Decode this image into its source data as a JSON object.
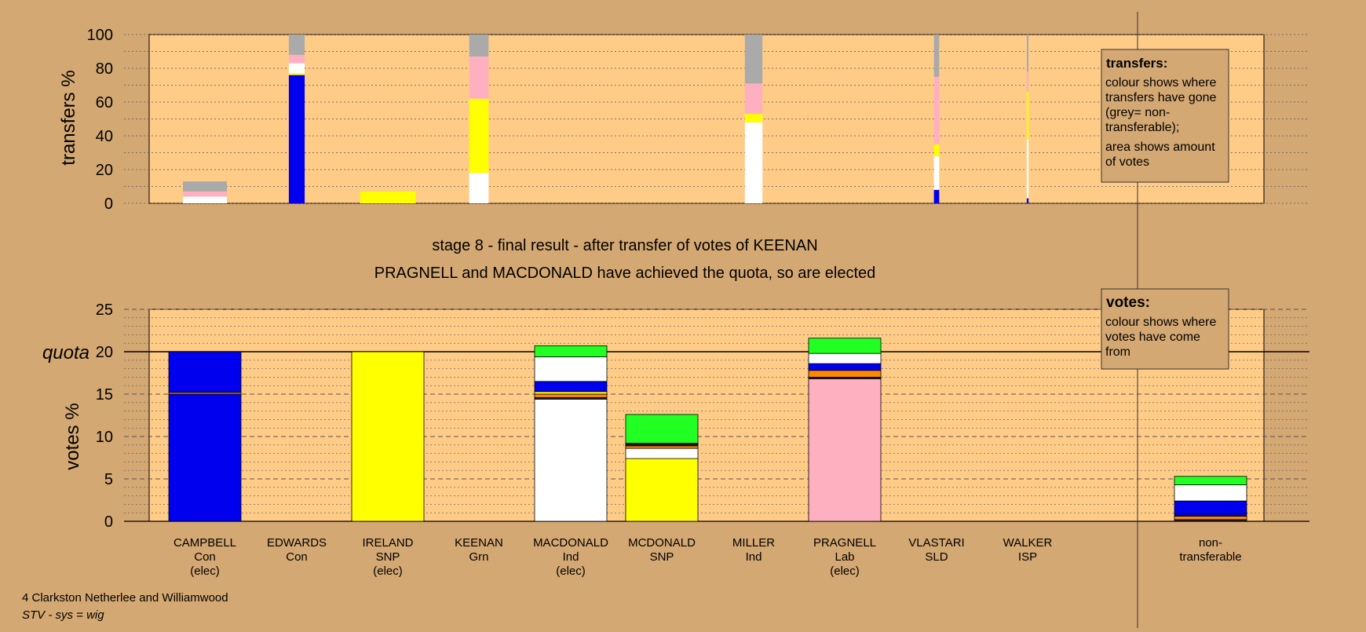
{
  "colors": {
    "background": "#d4a873",
    "plot_area": "#ffcc88",
    "con": "#0000ee",
    "snp": "#ffff00",
    "ind": "#ffffff",
    "lab": "#ffb0c0",
    "grn": "#22ff22",
    "sld": "#ff8800",
    "isp": "#222222",
    "non_transferable": "#aaaaaa"
  },
  "heading": {
    "stage": "stage 8 - final result - after transfer of votes of KEENAN",
    "result": "PRAGNELL and MACDONALD have achieved the quota, so are elected"
  },
  "footer": {
    "ward": "4 Clarkston Netherlee and Williamwood",
    "system": "STV - sys = wig"
  },
  "legend_transfers": {
    "title": "transfers:",
    "line1": "colour shows where transfers have gone (grey= non-transferable);",
    "line2": "area shows amount of votes"
  },
  "legend_votes": {
    "title": "votes:",
    "line1": "colour shows where votes have come from"
  },
  "candidates": [
    {
      "name": "CAMPBELL",
      "party": "Con",
      "status": "(elec)"
    },
    {
      "name": "EDWARDS",
      "party": "Con",
      "status": ""
    },
    {
      "name": "IRELAND",
      "party": "SNP",
      "status": "(elec)"
    },
    {
      "name": "KEENAN",
      "party": "Grn",
      "status": ""
    },
    {
      "name": "MACDONALD",
      "party": "Ind",
      "status": "(elec)"
    },
    {
      "name": "MCDONALD",
      "party": "SNP",
      "status": ""
    },
    {
      "name": "MILLER",
      "party": "Ind",
      "status": ""
    },
    {
      "name": "PRAGNELL",
      "party": "Lab",
      "status": "(elec)"
    },
    {
      "name": "VLASTARI",
      "party": "SLD",
      "status": ""
    },
    {
      "name": "WALKER",
      "party": "ISP",
      "status": ""
    },
    {
      "name": "non-",
      "party": "transferable",
      "status": ""
    }
  ],
  "chart_data": [
    {
      "type": "bar",
      "subtype": "stacked-variable-width",
      "ylabel": "transfers %",
      "ylim": [
        0,
        100
      ],
      "yticks": [
        0,
        20,
        40,
        60,
        80,
        100
      ],
      "grid": true,
      "bars": [
        {
          "candidate": "CAMPBELL",
          "width_share": 0.5,
          "segments": [
            {
              "color": "ind",
              "value": 4
            },
            {
              "color": "lab",
              "value": 3
            },
            {
              "color": "non_transferable",
              "value": 6
            }
          ]
        },
        {
          "candidate": "EDWARDS",
          "width_share": 0.18,
          "segments": [
            {
              "color": "con",
              "value": 76
            },
            {
              "color": "snp",
              "value": 1
            },
            {
              "color": "ind",
              "value": 6
            },
            {
              "color": "lab",
              "value": 5
            },
            {
              "color": "non_transferable",
              "value": 12
            }
          ]
        },
        {
          "candidate": "IRELAND",
          "width_share": 0.63,
          "segments": [
            {
              "color": "snp",
              "value": 7
            }
          ]
        },
        {
          "candidate": "KEENAN",
          "width_share": 0.22,
          "segments": [
            {
              "color": "ind",
              "value": 18
            },
            {
              "color": "snp",
              "value": 44
            },
            {
              "color": "lab",
              "value": 25
            },
            {
              "color": "non_transferable",
              "value": 13
            }
          ]
        },
        {
          "candidate": "MILLER",
          "width_share": 0.2,
          "segments": [
            {
              "color": "ind",
              "value": 48
            },
            {
              "color": "snp",
              "value": 5
            },
            {
              "color": "lab",
              "value": 18
            },
            {
              "color": "non_transferable",
              "value": 29
            }
          ]
        },
        {
          "candidate": "VLASTARI",
          "width_share": 0.06,
          "segments": [
            {
              "color": "con",
              "value": 8
            },
            {
              "color": "ind",
              "value": 20
            },
            {
              "color": "snp",
              "value": 7
            },
            {
              "color": "lab",
              "value": 40
            },
            {
              "color": "non_transferable",
              "value": 25
            }
          ]
        },
        {
          "candidate": "WALKER",
          "width_share": 0.02,
          "segments": [
            {
              "color": "con",
              "value": 3
            },
            {
              "color": "ind",
              "value": 35
            },
            {
              "color": "snp",
              "value": 28
            },
            {
              "color": "lab",
              "value": 12
            },
            {
              "color": "non_transferable",
              "value": 22
            }
          ]
        }
      ]
    },
    {
      "type": "bar",
      "subtype": "stacked",
      "ylabel": "votes %",
      "ylim": [
        0,
        25
      ],
      "yticks": [
        0,
        5,
        10,
        15,
        20,
        25
      ],
      "quota": 20,
      "quota_label": "quota",
      "grid": true,
      "bars": [
        {
          "candidate": "CAMPBELL",
          "segments": [
            {
              "color": "con",
              "value": 15
            },
            {
              "color": "sld",
              "value": 0.2
            },
            {
              "color": "con",
              "value": 4.8
            }
          ]
        },
        {
          "candidate": "EDWARDS",
          "segments": []
        },
        {
          "candidate": "IRELAND",
          "segments": [
            {
              "color": "snp",
              "value": 20
            }
          ]
        },
        {
          "candidate": "KEENAN",
          "segments": []
        },
        {
          "candidate": "MACDONALD",
          "segments": [
            {
              "color": "ind",
              "value": 14.4
            },
            {
              "color": "isp",
              "value": 0.2
            },
            {
              "color": "sld",
              "value": 0.4
            },
            {
              "color": "snp",
              "value": 0.3
            },
            {
              "color": "con",
              "value": 1.2
            },
            {
              "color": "ind",
              "value": 2.9
            },
            {
              "color": "grn",
              "value": 1.3
            }
          ]
        },
        {
          "candidate": "MCDONALD",
          "segments": [
            {
              "color": "snp",
              "value": 7.4
            },
            {
              "color": "ind",
              "value": 1.2
            },
            {
              "color": "sld",
              "value": 0.3
            },
            {
              "color": "isp",
              "value": 0.2
            },
            {
              "color": "con",
              "value": 0.1
            },
            {
              "color": "grn",
              "value": 3.4
            }
          ]
        },
        {
          "candidate": "MILLER",
          "segments": []
        },
        {
          "candidate": "PRAGNELL",
          "segments": [
            {
              "color": "lab",
              "value": 16.8
            },
            {
              "color": "isp",
              "value": 0.2
            },
            {
              "color": "sld",
              "value": 0.8
            },
            {
              "color": "con",
              "value": 0.8
            },
            {
              "color": "ind",
              "value": 1.2
            },
            {
              "color": "grn",
              "value": 1.8
            }
          ]
        },
        {
          "candidate": "VLASTARI",
          "segments": []
        },
        {
          "candidate": "WALKER",
          "segments": []
        },
        {
          "candidate": "non-transferable",
          "segments": [
            {
              "color": "isp",
              "value": 0.2
            },
            {
              "color": "sld",
              "value": 0.4
            },
            {
              "color": "con",
              "value": 0.3
            },
            {
              "color": "con",
              "value": 1.5
            },
            {
              "color": "ind",
              "value": 1.9
            },
            {
              "color": "grn",
              "value": 1.0
            }
          ]
        }
      ]
    }
  ]
}
